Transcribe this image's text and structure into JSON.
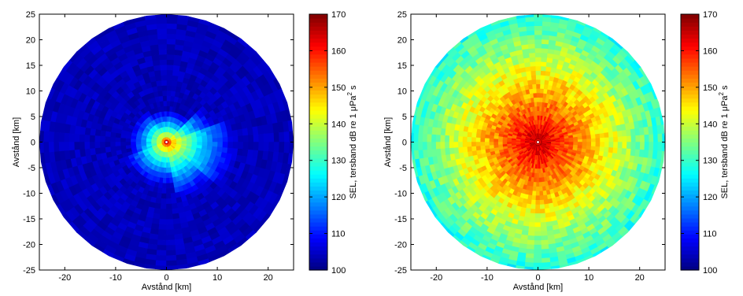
{
  "chart_data": [
    {
      "type": "heatmap",
      "xlabel": "Avstånd [km]",
      "ylabel": "Avstånd [km]",
      "xlim": [
        -25,
        25
      ],
      "ylim": [
        -25,
        25
      ],
      "xticks": [
        -20,
        -10,
        0,
        10,
        20
      ],
      "yticks": [
        25,
        20,
        15,
        10,
        5,
        0,
        -5,
        -10,
        -15,
        -20,
        -25
      ],
      "colorbar": {
        "label_prefix": "SEL, tersband dB re 1 μPa",
        "label_sup": "2",
        "label_suffix": " s",
        "range": [
          100,
          170
        ],
        "ticks": [
          170,
          160,
          150,
          140,
          130,
          120,
          110,
          100
        ]
      },
      "radius_km": 25,
      "source_level_db": 165,
      "background_level_db": 104
    },
    {
      "type": "heatmap",
      "xlabel": "Avstånd [km]",
      "ylabel": "Avstånd [km]",
      "xlim": [
        -25,
        25
      ],
      "ylim": [
        -25,
        25
      ],
      "xticks": [
        -20,
        -10,
        0,
        10,
        20
      ],
      "yticks": [
        25,
        20,
        15,
        10,
        5,
        0,
        -5,
        -10,
        -15,
        -20,
        -25
      ],
      "colorbar": {
        "label_prefix": "SEL, tersband dB re 1 μPa",
        "label_sup": "2",
        "label_suffix": " s",
        "range": [
          100,
          170
        ],
        "ticks": [
          170,
          160,
          150,
          140,
          130,
          120,
          110,
          100
        ]
      },
      "radius_km": 25,
      "source_level_db": 168,
      "background_level_db": 120
    }
  ]
}
